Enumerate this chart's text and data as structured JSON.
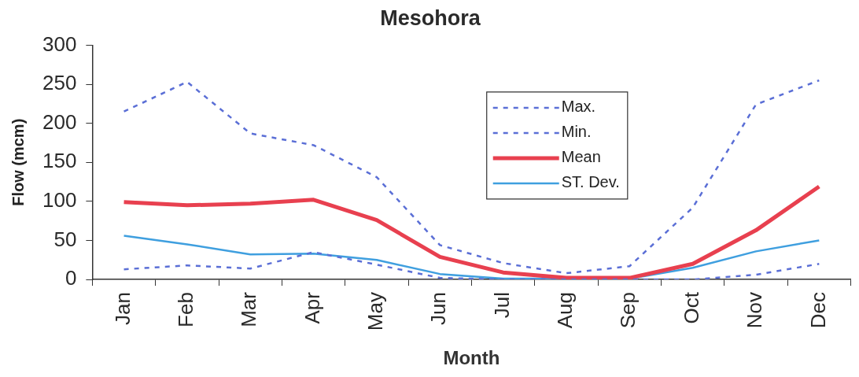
{
  "chart_data": {
    "type": "line",
    "title": "Mesohora",
    "xlabel": "Month",
    "ylabel": "Flow (mcm)",
    "categories": [
      "Jan",
      "Feb",
      "Mar",
      "Apr",
      "May",
      "Jun",
      "Jul",
      "Aug",
      "Sep",
      "Oct",
      "Nov",
      "Dec"
    ],
    "ylim": [
      0,
      300
    ],
    "yticks": [
      0,
      50,
      100,
      150,
      200,
      250,
      300
    ],
    "legend": "top right",
    "series": [
      {
        "name": "Max.",
        "color": "#5b6fd6",
        "line_style": "dashed",
        "values": [
          215,
          253,
          187,
          172,
          131,
          44,
          21,
          8,
          17,
          92,
          224,
          255
        ]
      },
      {
        "name": "Min.",
        "color": "#5b6fd6",
        "line_style": "dashed",
        "values": [
          13,
          18,
          14,
          35,
          19,
          2,
          0,
          0,
          0,
          0,
          6,
          20
        ]
      },
      {
        "name": "Mean",
        "color": "#e8404f",
        "line_style": "solid",
        "values": [
          99,
          95,
          97,
          102,
          76,
          29,
          9,
          2,
          2,
          20,
          63,
          119
        ]
      },
      {
        "name": "ST. Dev.",
        "color": "#3f9fdf",
        "line_style": "solid",
        "values": [
          56,
          45,
          32,
          33,
          25,
          7,
          1,
          1,
          1,
          15,
          36,
          50
        ]
      }
    ]
  }
}
